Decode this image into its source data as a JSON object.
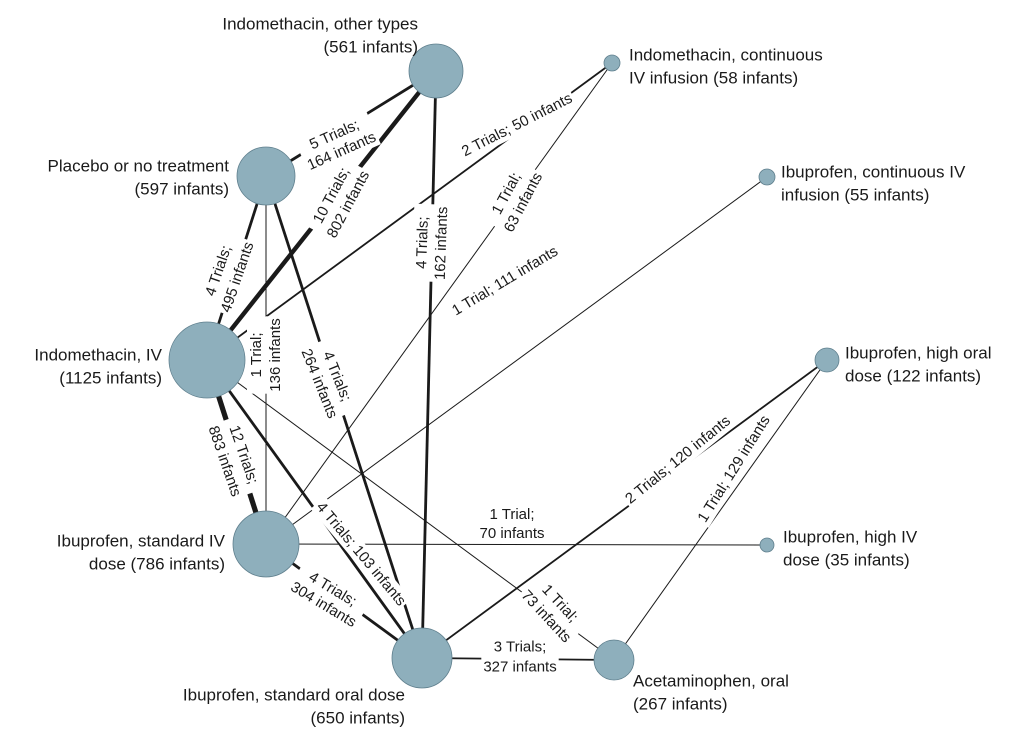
{
  "colors": {
    "node_fill": "#8eafbc",
    "node_stroke": "#5f7f8d",
    "edge": "#1a1a1a",
    "label_bg": "#ffffff"
  },
  "nodes": [
    {
      "id": "indo_other",
      "lines": [
        "Indomethacin, other types",
        "(561 infants)"
      ]
    },
    {
      "id": "indo_cont",
      "lines": [
        "Indomethacin, continuous",
        "IV infusion (58 infants)"
      ]
    },
    {
      "id": "placebo",
      "lines": [
        "Placebo or no treatment",
        "(597 infants)"
      ]
    },
    {
      "id": "ibu_cont",
      "lines": [
        "Ibuprofen, continuous IV",
        "infusion (55 infants)"
      ]
    },
    {
      "id": "indo_iv",
      "lines": [
        "Indomethacin, IV",
        "(1125 infants)"
      ]
    },
    {
      "id": "ibu_high_oral",
      "lines": [
        "Ibuprofen, high oral",
        "dose (122 infants)"
      ]
    },
    {
      "id": "ibu_std_iv",
      "lines": [
        "Ibuprofen, standard IV",
        "dose (786 infants)"
      ]
    },
    {
      "id": "ibu_high_iv",
      "lines": [
        "Ibuprofen, high IV",
        "dose (35 infants)"
      ]
    },
    {
      "id": "ibu_std_oral",
      "lines": [
        "Ibuprofen, standard oral dose",
        "(650 infants)"
      ]
    },
    {
      "id": "acet_oral",
      "lines": [
        "Acetaminophen, oral",
        "(267 infants)"
      ]
    }
  ],
  "edges": [
    {
      "from": "placebo",
      "to": "indo_other",
      "trials": 5,
      "lines": [
        "5 Trials;",
        "164 infants"
      ]
    },
    {
      "from": "indo_iv",
      "to": "indo_other",
      "trials": 10,
      "lines": [
        "10 Trials;",
        "802 infants"
      ]
    },
    {
      "from": "ibu_std_oral",
      "to": "indo_other",
      "trials": 4,
      "lines": [
        "4 Trials;",
        "162 infants"
      ]
    },
    {
      "from": "indo_iv",
      "to": "indo_cont",
      "trials": 2,
      "lines": [
        "2 Trials; 50 infants"
      ]
    },
    {
      "from": "ibu_std_iv",
      "to": "indo_cont",
      "trials": 1,
      "lines": [
        "1 Trial;",
        "63 infants"
      ]
    },
    {
      "from": "indo_iv",
      "to": "placebo",
      "trials": 4,
      "lines": [
        "4 Trials;",
        "495 infants"
      ]
    },
    {
      "from": "ibu_std_iv",
      "to": "placebo",
      "trials": 1,
      "lines": [
        "1 Trial;",
        "136 infants"
      ]
    },
    {
      "from": "ibu_std_oral",
      "to": "placebo",
      "trials": 4,
      "lines": [
        "4 Trials;",
        "264 infants"
      ]
    },
    {
      "from": "ibu_std_iv",
      "to": "ibu_cont",
      "trials": 1,
      "lines": [
        "1 Trial; 111 infants"
      ]
    },
    {
      "from": "indo_iv",
      "to": "ibu_std_iv",
      "trials": 12,
      "lines": [
        "12 Trials;",
        "883 infants"
      ]
    },
    {
      "from": "indo_iv",
      "to": "ibu_std_oral",
      "trials": 4,
      "lines": [
        "4 Trials; 103 infants"
      ]
    },
    {
      "from": "indo_iv",
      "to": "acet_oral",
      "trials": 1,
      "lines": [
        "1 Trial;",
        "73 infants"
      ]
    },
    {
      "from": "ibu_std_iv",
      "to": "ibu_high_iv",
      "trials": 1,
      "lines": [
        "1 Trial;",
        "70 infants"
      ]
    },
    {
      "from": "ibu_std_iv",
      "to": "ibu_std_oral",
      "trials": 4,
      "lines": [
        "4 Trials;",
        "304 infants"
      ]
    },
    {
      "from": "ibu_std_oral",
      "to": "ibu_high_oral",
      "trials": 2,
      "lines": [
        "2 Trials; 120 infants"
      ]
    },
    {
      "from": "acet_oral",
      "to": "ibu_high_oral",
      "trials": 1,
      "lines": [
        "1 Trial; 129 infants"
      ]
    },
    {
      "from": "ibu_std_oral",
      "to": "acet_oral",
      "trials": 3,
      "lines": [
        "3 Trials;",
        "327 infants"
      ]
    }
  ]
}
